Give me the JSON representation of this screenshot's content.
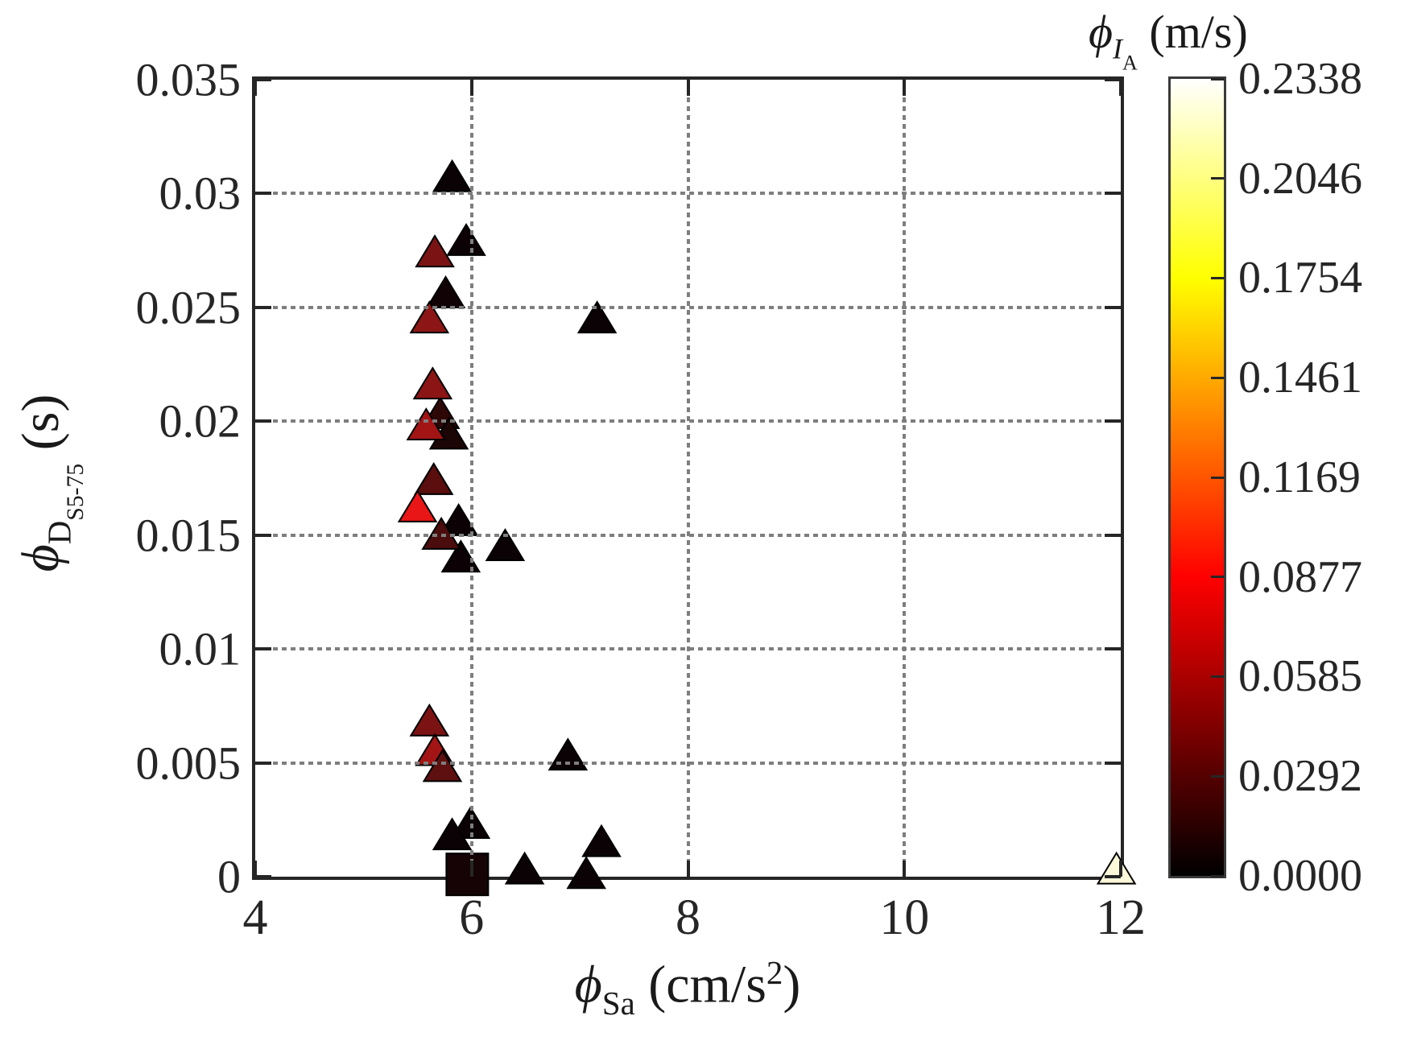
{
  "figure": {
    "background": "#ffffff",
    "axis_color": "#262626",
    "grid_color": "#7e7e7e",
    "grid_style": "dotted"
  },
  "axes": {
    "x": {
      "label": {
        "phi": "ϕ",
        "sub": "Sa",
        "unit_pre": " (cm/s",
        "sup": "2",
        "unit_post": ")"
      },
      "range": [
        4,
        12
      ],
      "ticks": [
        4,
        6,
        8,
        10,
        12
      ],
      "tick_labels": [
        "4",
        "6",
        "8",
        "10",
        "12"
      ],
      "gridlines": [
        6,
        8,
        10
      ]
    },
    "y": {
      "label": {
        "phi": "ϕ",
        "sub": "D",
        "subsub": "S5-75",
        "unit": " (s)"
      },
      "range": [
        0,
        0.035
      ],
      "ticks": [
        0,
        0.005,
        0.01,
        0.015,
        0.02,
        0.025,
        0.03,
        0.035
      ],
      "tick_labels": [
        "0",
        "0.005",
        "0.01",
        "0.015",
        "0.02",
        "0.025",
        "0.03",
        "0.035"
      ],
      "gridlines": [
        0.005,
        0.01,
        0.015,
        0.02,
        0.025,
        0.03
      ]
    }
  },
  "colorbar": {
    "title": {
      "phi": "ϕ",
      "sub": "I",
      "subsub": "A",
      "unit": " (m/s)"
    },
    "range": [
      0,
      0.2338
    ],
    "ticks": [
      0.0,
      0.0292,
      0.0585,
      0.0877,
      0.1169,
      0.1461,
      0.1754,
      0.2046,
      0.2338
    ],
    "tick_labels": [
      "0.0000",
      "0.0292",
      "0.0585",
      "0.0877",
      "0.1169",
      "0.1461",
      "0.1754",
      "0.2046",
      "0.2338"
    ],
    "colormap": "hot",
    "gradient_colors": [
      "#000000",
      "#ff0000",
      "#ffff00",
      "#ffffff"
    ],
    "gradient_stops": [
      0,
      0.375,
      0.75,
      1
    ]
  },
  "chart_data": {
    "type": "scatter",
    "title": "",
    "xlabel": "phi_Sa (cm/s^2)",
    "ylabel": "phi_D_S5-75 (s)",
    "colorbar_label": "phi_I_A (m/s)",
    "xlim": [
      4,
      12
    ],
    "ylim": [
      0,
      0.035
    ],
    "clim": [
      0,
      0.2338
    ],
    "grid": "dotted",
    "legend": "none",
    "points": [
      {
        "x": 5.82,
        "y": 0.0307,
        "c": 0.002,
        "color": "#0a0204",
        "marker": "triangle"
      },
      {
        "x": 5.66,
        "y": 0.0274,
        "c": 0.042,
        "color": "#7a1414",
        "marker": "triangle"
      },
      {
        "x": 5.95,
        "y": 0.0279,
        "c": 0.003,
        "color": "#0c0205",
        "marker": "triangle"
      },
      {
        "x": 5.76,
        "y": 0.0256,
        "c": 0.004,
        "color": "#110305",
        "marker": "triangle"
      },
      {
        "x": 5.61,
        "y": 0.0245,
        "c": 0.048,
        "color": "#8c1616",
        "marker": "triangle"
      },
      {
        "x": 7.16,
        "y": 0.0245,
        "c": 0.002,
        "color": "#0a0204",
        "marker": "triangle"
      },
      {
        "x": 5.71,
        "y": 0.0203,
        "c": 0.016,
        "color": "#2e0707",
        "marker": "triangle"
      },
      {
        "x": 5.79,
        "y": 0.0194,
        "c": 0.01,
        "color": "#1c0505",
        "marker": "triangle"
      },
      {
        "x": 5.64,
        "y": 0.0216,
        "c": 0.048,
        "color": "#8b1515",
        "marker": "triangle"
      },
      {
        "x": 5.58,
        "y": 0.0198,
        "c": 0.054,
        "color": "#a31414",
        "marker": "triangle"
      },
      {
        "x": 5.65,
        "y": 0.0174,
        "c": 0.031,
        "color": "#5a0e0e",
        "marker": "triangle"
      },
      {
        "x": 5.5,
        "y": 0.0162,
        "c": 0.08,
        "color": "#e81616",
        "marker": "triangle"
      },
      {
        "x": 5.88,
        "y": 0.0156,
        "c": 0.003,
        "color": "#0c0205",
        "marker": "triangle"
      },
      {
        "x": 5.9,
        "y": 0.014,
        "c": 0.003,
        "color": "#0c0205",
        "marker": "triangle"
      },
      {
        "x": 5.72,
        "y": 0.015,
        "c": 0.025,
        "color": "#4a0c0c",
        "marker": "triangle"
      },
      {
        "x": 6.31,
        "y": 0.0145,
        "c": 0.002,
        "color": "#0a0204",
        "marker": "triangle"
      },
      {
        "x": 5.61,
        "y": 0.0068,
        "c": 0.042,
        "color": "#7c1313",
        "marker": "triangle"
      },
      {
        "x": 5.66,
        "y": 0.0055,
        "c": 0.056,
        "color": "#a31515",
        "marker": "triangle"
      },
      {
        "x": 5.73,
        "y": 0.0048,
        "c": 0.032,
        "color": "#5e1010",
        "marker": "triangle"
      },
      {
        "x": 6.89,
        "y": 0.0053,
        "c": 0.002,
        "color": "#0a0204",
        "marker": "triangle"
      },
      {
        "x": 5.99,
        "y": 0.0023,
        "c": 0.002,
        "color": "#0a0204",
        "marker": "triangle"
      },
      {
        "x": 5.82,
        "y": 0.0018,
        "c": 0.002,
        "color": "#0a0204",
        "marker": "triangle"
      },
      {
        "x": 5.96,
        "y": 0.0001,
        "c": 0.004,
        "color": "#150306",
        "marker": "square"
      },
      {
        "x": 6.49,
        "y": 0.0003,
        "c": 0.002,
        "color": "#0a0204",
        "marker": "triangle"
      },
      {
        "x": 7.2,
        "y": 0.0015,
        "c": 0.002,
        "color": "#0a0204",
        "marker": "triangle"
      },
      {
        "x": 7.06,
        "y": 0.0001,
        "c": 0.002,
        "color": "#0a0204",
        "marker": "triangle"
      },
      {
        "x": 11.96,
        "y": 0.0003,
        "c": 0.225,
        "color": "#fcf8da",
        "marker": "triangle"
      }
    ]
  }
}
